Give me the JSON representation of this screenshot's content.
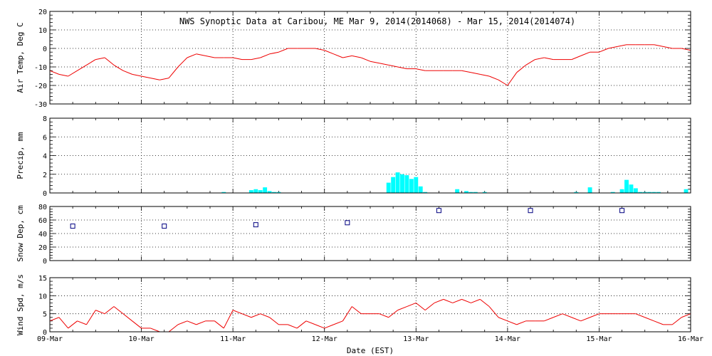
{
  "chart_data": [
    {
      "type": "line",
      "title": "NWS Synoptic Data at Caribou, ME   Mar  9, 2014(2014068) - Mar 15, 2014(2014074)",
      "ylabel": "Air Temp, Deg C",
      "ylim": [
        -30,
        20
      ],
      "yticks": [
        "20",
        "10",
        "0",
        "-10",
        "-20",
        "-30"
      ],
      "color": "#ee0000",
      "x": [
        0,
        0.1,
        0.2,
        0.3,
        0.4,
        0.5,
        0.6,
        0.7,
        0.8,
        0.9,
        1.0,
        1.1,
        1.2,
        1.3,
        1.4,
        1.5,
        1.6,
        1.7,
        1.8,
        1.9,
        2.0,
        2.1,
        2.2,
        2.3,
        2.4,
        2.5,
        2.6,
        2.7,
        2.8,
        2.9,
        3.0,
        3.1,
        3.2,
        3.3,
        3.4,
        3.5,
        3.6,
        3.7,
        3.8,
        3.9,
        4.0,
        4.1,
        4.2,
        4.3,
        4.4,
        4.5,
        4.6,
        4.7,
        4.8,
        4.9,
        5.0,
        5.1,
        5.2,
        5.3,
        5.4,
        5.5,
        5.6,
        5.7,
        5.8,
        5.9,
        6.0,
        6.1,
        6.2,
        6.3,
        6.4,
        6.5,
        6.6,
        6.7,
        6.8,
        6.9,
        7.0
      ],
      "values": [
        -12,
        -14,
        -15,
        -12,
        -9,
        -6,
        -5,
        -9,
        -12,
        -14,
        -15,
        -16,
        -17,
        -16,
        -10,
        -5,
        -3,
        -4,
        -5,
        -5,
        -5,
        -6,
        -6,
        -5,
        -3,
        -2,
        0,
        0,
        0,
        0,
        -1,
        -3,
        -5,
        -4,
        -5,
        -7,
        -8,
        -9,
        -10,
        -11,
        -11,
        -12,
        -12,
        -12,
        -12,
        -12,
        -13,
        -14,
        -15,
        -17,
        -20,
        -13,
        -9,
        -6,
        -5,
        -6,
        -6,
        -6,
        -4,
        -2,
        -2,
        0,
        1,
        2,
        2,
        2,
        2,
        1,
        0,
        0,
        -1
      ]
    },
    {
      "type": "bar",
      "ylabel": "Precip, mm",
      "ylim": [
        0,
        8
      ],
      "yticks": [
        "8",
        "6",
        "4",
        "2",
        "0"
      ],
      "color": "#00ffff",
      "x": [
        1.9,
        2.2,
        2.25,
        2.3,
        2.35,
        2.4,
        2.45,
        2.5,
        3.7,
        3.75,
        3.8,
        3.85,
        3.9,
        3.95,
        4.0,
        4.05,
        4.1,
        4.45,
        4.55,
        4.6,
        4.65,
        4.75,
        5.75,
        5.9,
        6.15,
        6.25,
        6.3,
        6.35,
        6.4,
        6.45,
        6.5,
        6.55,
        6.6,
        6.65,
        6.95
      ],
      "values": [
        0.1,
        0.3,
        0.4,
        0.3,
        0.6,
        0.2,
        0.1,
        0.1,
        1.1,
        1.7,
        2.2,
        2.0,
        1.9,
        1.5,
        1.7,
        0.7,
        0.1,
        0.4,
        0.2,
        0.1,
        0.1,
        0.1,
        0.1,
        0.6,
        0.1,
        0.4,
        1.4,
        0.9,
        0.5,
        0.1,
        0.1,
        0.1,
        0.1,
        0.1,
        0.4
      ]
    },
    {
      "type": "scatter",
      "ylabel": "Snow Dep, cm",
      "ylim": [
        0,
        80
      ],
      "yticks": [
        "80",
        "60",
        "40",
        "20",
        "0"
      ],
      "color": "#000080",
      "x": [
        0.25,
        1.25,
        2.25,
        3.25,
        4.25,
        5.25,
        6.25
      ],
      "values": [
        51,
        51,
        53,
        56,
        74,
        74,
        74
      ]
    },
    {
      "type": "line",
      "ylabel": "Wind Spd, m/s",
      "ylim": [
        0,
        15
      ],
      "yticks": [
        "15",
        "10",
        "5",
        "0"
      ],
      "xlabel": "Date (EST)",
      "xtick_labels": [
        "09-Mar",
        "10-Mar",
        "11-Mar",
        "12-Mar",
        "13-Mar",
        "14-Mar",
        "15-Mar",
        "16-Mar"
      ],
      "color": "#ee0000",
      "x": [
        0,
        0.1,
        0.2,
        0.3,
        0.4,
        0.5,
        0.6,
        0.7,
        0.8,
        0.9,
        1.0,
        1.1,
        1.2,
        1.3,
        1.4,
        1.5,
        1.6,
        1.7,
        1.8,
        1.9,
        2.0,
        2.1,
        2.2,
        2.3,
        2.4,
        2.5,
        2.6,
        2.7,
        2.8,
        2.9,
        3.0,
        3.1,
        3.2,
        3.3,
        3.4,
        3.5,
        3.6,
        3.7,
        3.8,
        3.9,
        4.0,
        4.1,
        4.2,
        4.3,
        4.4,
        4.5,
        4.6,
        4.7,
        4.8,
        4.9,
        5.0,
        5.1,
        5.2,
        5.3,
        5.4,
        5.5,
        5.6,
        5.7,
        5.8,
        5.9,
        6.0,
        6.1,
        6.2,
        6.3,
        6.4,
        6.5,
        6.6,
        6.7,
        6.8,
        6.9,
        7.0
      ],
      "values": [
        3,
        4,
        1,
        3,
        2,
        6,
        5,
        7,
        5,
        3,
        1,
        1,
        0,
        0,
        2,
        3,
        2,
        3,
        3,
        1,
        6,
        5,
        4,
        5,
        4,
        2,
        2,
        1,
        3,
        2,
        1,
        2,
        3,
        7,
        5,
        5,
        5,
        4,
        6,
        7,
        8,
        6,
        8,
        9,
        8,
        9,
        8,
        9,
        7,
        4,
        3,
        2,
        3,
        3,
        3,
        4,
        5,
        4,
        3,
        4,
        5,
        5,
        5,
        5,
        5,
        4,
        3,
        2,
        2,
        4,
        5
      ]
    }
  ]
}
